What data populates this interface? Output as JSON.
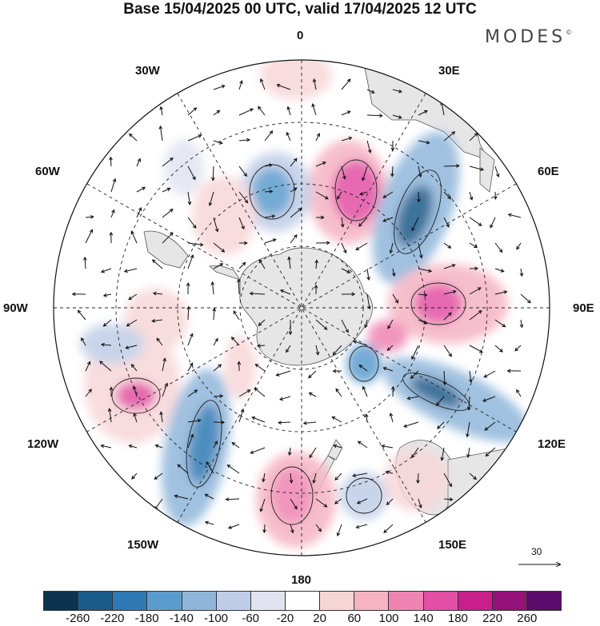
{
  "title": "Base 15/04/2025 00 UTC, valid 17/04/2025 12 UTC",
  "brand": "MODES",
  "brand_mark": "©",
  "longitude_labels": {
    "top": "0",
    "e30": "30E",
    "e60": "60E",
    "e90": "90E",
    "e120": "120E",
    "e150": "150E",
    "bottom": "180",
    "w150": "150W",
    "w120": "120W",
    "w90": "90W",
    "w60": "60W",
    "w30": "30W"
  },
  "vector_scale_label": "30",
  "colorbar": {
    "colors": [
      "#0c3350",
      "#1a5b8a",
      "#2f7ab4",
      "#5b9cce",
      "#8fb6da",
      "#bfcde6",
      "#e1e3f0",
      "#ffffff",
      "#f7d6d8",
      "#f5b3c3",
      "#ef84b2",
      "#e24fa4",
      "#c81f8c",
      "#94127a",
      "#5a0a6a"
    ],
    "labels": [
      "-260",
      "-220",
      "-180",
      "-140",
      "-100",
      "-60",
      "-20",
      "20",
      "60",
      "100",
      "140",
      "180",
      "220",
      "260"
    ]
  }
}
